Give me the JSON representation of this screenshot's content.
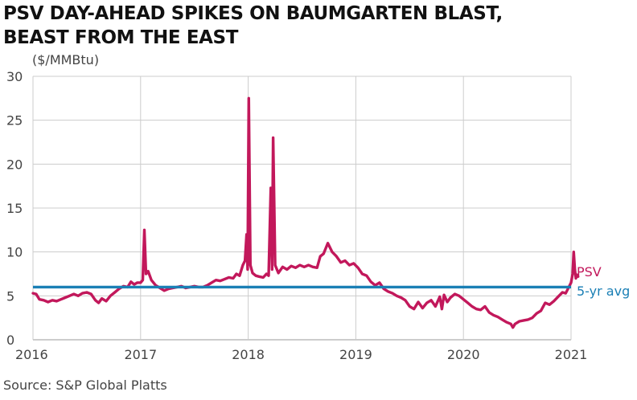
{
  "title_lines": [
    "PSV DAY-AHEAD SPIKES ON BAUMGARTEN BLAST,",
    "BEAST FROM THE EAST"
  ],
  "source": "Source: S&P Global Platts",
  "chart_data": {
    "type": "line",
    "title": "PSV DAY-AHEAD SPIKES ON BAUMGARTEN BLAST, BEAST FROM THE EAST",
    "ylabel": "($/MMBtu)",
    "xlabel": "",
    "ylim": [
      0,
      30
    ],
    "xlim": [
      2016.0,
      2021.08
    ],
    "grid": true,
    "x_tick_labels": [
      "2016",
      "2017",
      "2018",
      "2019",
      "2020",
      "2021"
    ],
    "x_ticks": [
      2016,
      2017,
      2018,
      2019,
      2020,
      2021
    ],
    "y_ticks": [
      0,
      5,
      10,
      15,
      20,
      25,
      30
    ],
    "colors": {
      "psv": "#c2185b",
      "avg": "#1a7fb5",
      "grid": "#cccccc"
    },
    "series": [
      {
        "name": "PSV",
        "color": "#c2185b",
        "points": [
          [
            2016.0,
            5.3
          ],
          [
            2016.03,
            5.2
          ],
          [
            2016.06,
            4.6
          ],
          [
            2016.1,
            4.5
          ],
          [
            2016.14,
            4.3
          ],
          [
            2016.18,
            4.5
          ],
          [
            2016.22,
            4.4
          ],
          [
            2016.26,
            4.6
          ],
          [
            2016.3,
            4.8
          ],
          [
            2016.34,
            5.0
          ],
          [
            2016.38,
            5.2
          ],
          [
            2016.42,
            5.0
          ],
          [
            2016.46,
            5.3
          ],
          [
            2016.5,
            5.4
          ],
          [
            2016.54,
            5.2
          ],
          [
            2016.58,
            4.5
          ],
          [
            2016.61,
            4.2
          ],
          [
            2016.64,
            4.7
          ],
          [
            2016.68,
            4.4
          ],
          [
            2016.72,
            5.0
          ],
          [
            2016.76,
            5.4
          ],
          [
            2016.8,
            5.8
          ],
          [
            2016.84,
            6.1
          ],
          [
            2016.88,
            6.0
          ],
          [
            2016.91,
            6.6
          ],
          [
            2016.94,
            6.3
          ],
          [
            2016.97,
            6.5
          ],
          [
            2017.0,
            6.5
          ],
          [
            2017.02,
            6.8
          ],
          [
            2017.035,
            12.5
          ],
          [
            2017.05,
            7.5
          ],
          [
            2017.07,
            7.8
          ],
          [
            2017.1,
            6.8
          ],
          [
            2017.14,
            6.2
          ],
          [
            2017.18,
            5.9
          ],
          [
            2017.22,
            5.6
          ],
          [
            2017.26,
            5.8
          ],
          [
            2017.3,
            5.9
          ],
          [
            2017.34,
            6.0
          ],
          [
            2017.38,
            6.1
          ],
          [
            2017.42,
            5.9
          ],
          [
            2017.46,
            6.0
          ],
          [
            2017.5,
            6.1
          ],
          [
            2017.54,
            6.0
          ],
          [
            2017.58,
            6.0
          ],
          [
            2017.62,
            6.2
          ],
          [
            2017.66,
            6.5
          ],
          [
            2017.7,
            6.8
          ],
          [
            2017.74,
            6.7
          ],
          [
            2017.78,
            6.9
          ],
          [
            2017.82,
            7.1
          ],
          [
            2017.86,
            7.0
          ],
          [
            2017.89,
            7.5
          ],
          [
            2017.92,
            7.3
          ],
          [
            2017.95,
            8.5
          ],
          [
            2017.97,
            9.0
          ],
          [
            2017.985,
            12.0
          ],
          [
            2017.995,
            8.0
          ],
          [
            2018.005,
            27.5
          ],
          [
            2018.02,
            8.5
          ],
          [
            2018.04,
            7.6
          ],
          [
            2018.07,
            7.3
          ],
          [
            2018.1,
            7.2
          ],
          [
            2018.14,
            7.1
          ],
          [
            2018.17,
            7.5
          ],
          [
            2018.19,
            7.3
          ],
          [
            2018.21,
            17.3
          ],
          [
            2018.222,
            8.0
          ],
          [
            2018.232,
            23.0
          ],
          [
            2018.25,
            8.5
          ],
          [
            2018.28,
            7.6
          ],
          [
            2018.32,
            8.3
          ],
          [
            2018.36,
            8.0
          ],
          [
            2018.4,
            8.4
          ],
          [
            2018.44,
            8.2
          ],
          [
            2018.48,
            8.5
          ],
          [
            2018.52,
            8.3
          ],
          [
            2018.56,
            8.5
          ],
          [
            2018.6,
            8.3
          ],
          [
            2018.64,
            8.2
          ],
          [
            2018.67,
            9.5
          ],
          [
            2018.7,
            9.8
          ],
          [
            2018.74,
            11.0
          ],
          [
            2018.78,
            10.0
          ],
          [
            2018.82,
            9.5
          ],
          [
            2018.86,
            8.8
          ],
          [
            2018.9,
            9.0
          ],
          [
            2018.94,
            8.5
          ],
          [
            2018.98,
            8.7
          ],
          [
            2019.02,
            8.2
          ],
          [
            2019.06,
            7.5
          ],
          [
            2019.1,
            7.3
          ],
          [
            2019.14,
            6.6
          ],
          [
            2019.18,
            6.2
          ],
          [
            2019.22,
            6.5
          ],
          [
            2019.26,
            5.8
          ],
          [
            2019.3,
            5.5
          ],
          [
            2019.34,
            5.3
          ],
          [
            2019.38,
            5.0
          ],
          [
            2019.42,
            4.8
          ],
          [
            2019.46,
            4.5
          ],
          [
            2019.5,
            3.8
          ],
          [
            2019.54,
            3.5
          ],
          [
            2019.58,
            4.3
          ],
          [
            2019.62,
            3.6
          ],
          [
            2019.66,
            4.2
          ],
          [
            2019.7,
            4.5
          ],
          [
            2019.74,
            3.8
          ],
          [
            2019.78,
            4.9
          ],
          [
            2019.8,
            3.5
          ],
          [
            2019.82,
            5.1
          ],
          [
            2019.85,
            4.3
          ],
          [
            2019.88,
            4.8
          ],
          [
            2019.92,
            5.2
          ],
          [
            2019.96,
            5.0
          ],
          [
            2020.0,
            4.6
          ],
          [
            2020.04,
            4.2
          ],
          [
            2020.08,
            3.8
          ],
          [
            2020.12,
            3.5
          ],
          [
            2020.16,
            3.4
          ],
          [
            2020.2,
            3.8
          ],
          [
            2020.24,
            3.1
          ],
          [
            2020.28,
            2.8
          ],
          [
            2020.32,
            2.6
          ],
          [
            2020.36,
            2.3
          ],
          [
            2020.4,
            2.0
          ],
          [
            2020.44,
            1.8
          ],
          [
            2020.46,
            1.4
          ],
          [
            2020.48,
            1.8
          ],
          [
            2020.52,
            2.1
          ],
          [
            2020.56,
            2.2
          ],
          [
            2020.6,
            2.3
          ],
          [
            2020.64,
            2.5
          ],
          [
            2020.68,
            3.0
          ],
          [
            2020.72,
            3.3
          ],
          [
            2020.76,
            4.2
          ],
          [
            2020.8,
            4.0
          ],
          [
            2020.84,
            4.4
          ],
          [
            2020.88,
            4.9
          ],
          [
            2020.92,
            5.4
          ],
          [
            2020.95,
            5.3
          ],
          [
            2020.98,
            6.0
          ],
          [
            2021.0,
            6.5
          ],
          [
            2021.015,
            7.5
          ],
          [
            2021.025,
            10.0
          ],
          [
            2021.035,
            8.0
          ],
          [
            2021.045,
            7.0
          ],
          [
            2021.055,
            7.4
          ],
          [
            2021.065,
            7.2
          ]
        ]
      },
      {
        "name": "5-yr avg",
        "color": "#1a7fb5",
        "value": 6.0
      }
    ]
  }
}
